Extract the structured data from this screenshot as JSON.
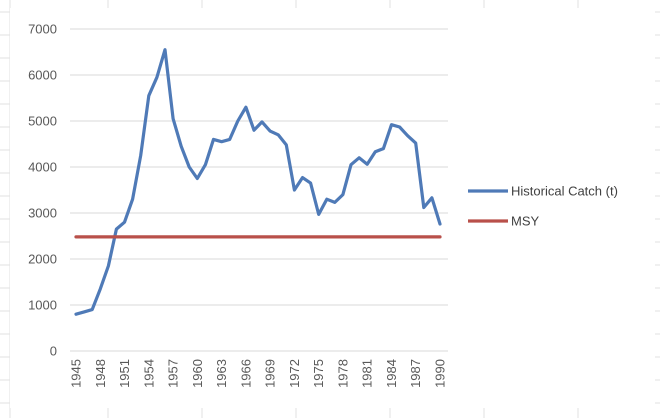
{
  "chart_data": {
    "type": "line",
    "title": "",
    "xlabel": "",
    "ylabel": "",
    "ylim": [
      0,
      7000
    ],
    "y_ticks": [
      "0",
      "1000",
      "2000",
      "3000",
      "4000",
      "5000",
      "6000",
      "7000"
    ],
    "x_ticks": [
      "1945",
      "1948",
      "1951",
      "1954",
      "1957",
      "1960",
      "1963",
      "1966",
      "1969",
      "1972",
      "1975",
      "1978",
      "1981",
      "1984",
      "1987",
      "1990"
    ],
    "x": [
      1945,
      1946,
      1947,
      1948,
      1949,
      1950,
      1951,
      1952,
      1953,
      1954,
      1955,
      1956,
      1957,
      1958,
      1959,
      1960,
      1961,
      1962,
      1963,
      1964,
      1965,
      1966,
      1967,
      1968,
      1969,
      1970,
      1971,
      1972,
      1973,
      1974,
      1975,
      1976,
      1977,
      1978,
      1979,
      1980,
      1981,
      1982,
      1983,
      1984,
      1985,
      1986,
      1987,
      1988,
      1989,
      1990
    ],
    "grid": true,
    "legend_position": "right",
    "series": [
      {
        "name": "Historical Catch (t)",
        "color": "#4f7ab7",
        "values": [
          800,
          850,
          900,
          1350,
          1850,
          2650,
          2800,
          3300,
          4250,
          5550,
          5950,
          6550,
          5050,
          4450,
          4000,
          3750,
          4050,
          4600,
          4550,
          4600,
          5000,
          5300,
          4800,
          4980,
          4780,
          4700,
          4480,
          3500,
          3770,
          3650,
          2970,
          3300,
          3230,
          3400,
          4050,
          4200,
          4060,
          4330,
          4400,
          4920,
          4870,
          4680,
          4520,
          3120,
          3330,
          2760
        ]
      },
      {
        "name": "MSY",
        "color": "#b9504a",
        "values": [
          2480,
          2480,
          2480,
          2480,
          2480,
          2480,
          2480,
          2480,
          2480,
          2480,
          2480,
          2480,
          2480,
          2480,
          2480,
          2480,
          2480,
          2480,
          2480,
          2480,
          2480,
          2480,
          2480,
          2480,
          2480,
          2480,
          2480,
          2480,
          2480,
          2480,
          2480,
          2480,
          2480,
          2480,
          2480,
          2480,
          2480,
          2480,
          2480,
          2480,
          2480,
          2480,
          2480,
          2480,
          2480,
          2480
        ]
      }
    ]
  }
}
